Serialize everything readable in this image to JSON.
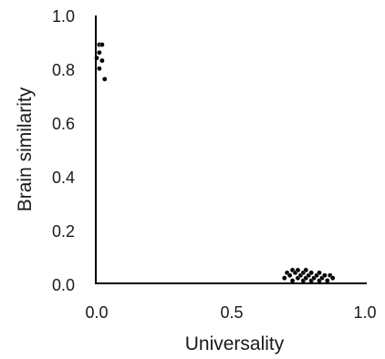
{
  "chart_data": {
    "type": "scatter",
    "xlabel": "Universality",
    "ylabel": "Brain similarity",
    "xlim": [
      0.0,
      1.0
    ],
    "ylim": [
      0.0,
      1.0
    ],
    "x_ticks": [
      "0.0",
      "0.5",
      "1.0"
    ],
    "y_ticks": [
      "0.0",
      "0.2",
      "0.4",
      "0.6",
      "0.8",
      "1.0"
    ],
    "grid": false,
    "legend": "none",
    "marker_color": "#000000",
    "points": [
      {
        "x": 0.01,
        "y": 0.89
      },
      {
        "x": 0.02,
        "y": 0.89
      },
      {
        "x": 0.01,
        "y": 0.86
      },
      {
        "x": 0.0,
        "y": 0.84
      },
      {
        "x": 0.02,
        "y": 0.83
      },
      {
        "x": 0.01,
        "y": 0.8
      },
      {
        "x": 0.03,
        "y": 0.76
      },
      {
        "x": 0.7,
        "y": 0.01
      },
      {
        "x": 0.71,
        "y": 0.03
      },
      {
        "x": 0.72,
        "y": 0.02
      },
      {
        "x": 0.73,
        "y": 0.04
      },
      {
        "x": 0.73,
        "y": 0.0
      },
      {
        "x": 0.74,
        "y": 0.03
      },
      {
        "x": 0.75,
        "y": 0.01
      },
      {
        "x": 0.75,
        "y": 0.04
      },
      {
        "x": 0.76,
        "y": 0.02
      },
      {
        "x": 0.77,
        "y": 0.0
      },
      {
        "x": 0.77,
        "y": 0.03
      },
      {
        "x": 0.78,
        "y": 0.01
      },
      {
        "x": 0.78,
        "y": 0.04
      },
      {
        "x": 0.79,
        "y": 0.02
      },
      {
        "x": 0.8,
        "y": 0.0
      },
      {
        "x": 0.8,
        "y": 0.03
      },
      {
        "x": 0.81,
        "y": 0.01
      },
      {
        "x": 0.82,
        "y": 0.02
      },
      {
        "x": 0.83,
        "y": 0.0
      },
      {
        "x": 0.83,
        "y": 0.03
      },
      {
        "x": 0.84,
        "y": 0.01
      },
      {
        "x": 0.85,
        "y": 0.02
      },
      {
        "x": 0.86,
        "y": 0.0
      },
      {
        "x": 0.87,
        "y": 0.02
      },
      {
        "x": 0.88,
        "y": 0.01
      }
    ]
  }
}
